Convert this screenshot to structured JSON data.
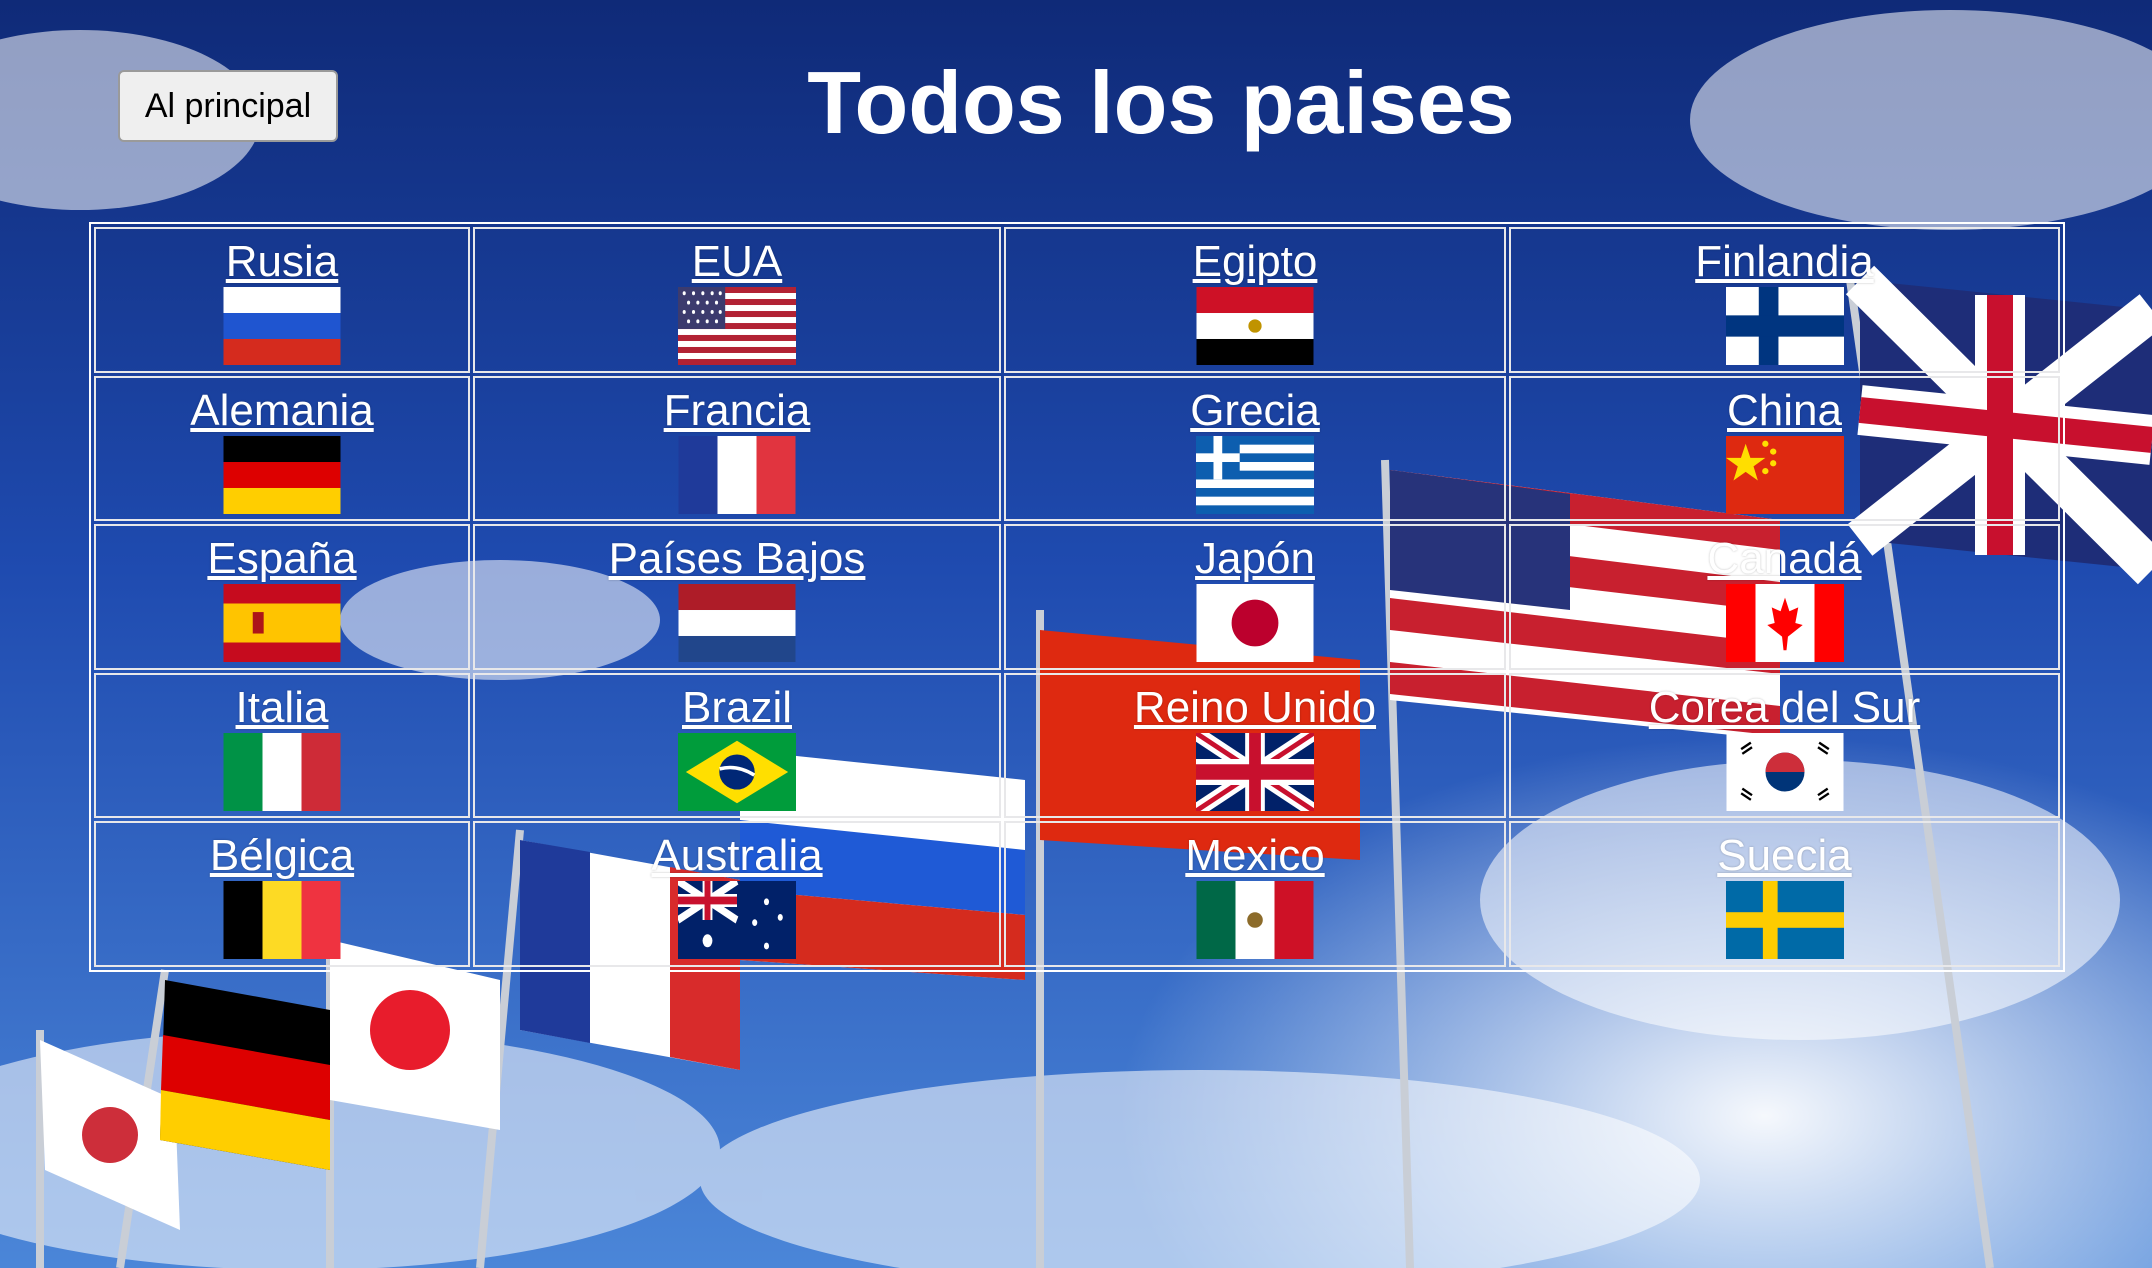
{
  "header": {
    "home_button": "Al principal",
    "title": "Todos los paises"
  },
  "countries": [
    {
      "name": "Rusia",
      "flag": "russia-flag"
    },
    {
      "name": "EUA",
      "flag": "usa-flag"
    },
    {
      "name": "Egipto",
      "flag": "egypt-flag"
    },
    {
      "name": "Finlandia",
      "flag": "finland-flag"
    },
    {
      "name": "Alemania",
      "flag": "germany-flag"
    },
    {
      "name": "Francia",
      "flag": "france-flag"
    },
    {
      "name": "Grecia",
      "flag": "greece-flag"
    },
    {
      "name": "China",
      "flag": "china-flag"
    },
    {
      "name": "España",
      "flag": "spain-flag"
    },
    {
      "name": "Países Bajos",
      "flag": "netherlands-flag"
    },
    {
      "name": "Japón",
      "flag": "japan-flag"
    },
    {
      "name": "Canadá",
      "flag": "canada-flag"
    },
    {
      "name": "Italia",
      "flag": "italy-flag"
    },
    {
      "name": "Brazil",
      "flag": "brazil-flag"
    },
    {
      "name": "Reino Unido",
      "flag": "uk-flag"
    },
    {
      "name": "Corea del Sur",
      "flag": "south-korea-flag"
    },
    {
      "name": "Bélgica",
      "flag": "belgium-flag"
    },
    {
      "name": "Australia",
      "flag": "australia-flag"
    },
    {
      "name": "Mexico",
      "flag": "mexico-flag"
    },
    {
      "name": "Suecia",
      "flag": "sweden-flag"
    }
  ]
}
